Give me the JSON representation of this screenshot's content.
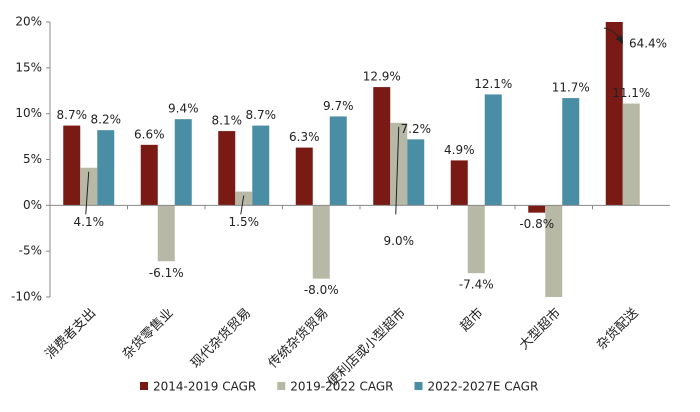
{
  "chart_data": {
    "type": "bar",
    "categories": [
      "消费者支出",
      "杂货零售业",
      "现代杂货贸易",
      "传统杂货贸易",
      "便利店或小型超市",
      "超市",
      "大型超市",
      "杂货配送"
    ],
    "series": [
      {
        "name": "2014-2019 CAGR",
        "color": "#7a1a14",
        "values": [
          8.7,
          6.6,
          8.1,
          6.3,
          12.9,
          4.9,
          -0.8,
          64.4
        ],
        "value_labels": [
          "8.7%",
          "6.6%",
          "8.1%",
          "6.3%",
          "12.9%",
          "4.9%",
          "-0.8%",
          "64.4%"
        ]
      },
      {
        "name": "2019-2022 CAGR",
        "color": "#b8b8a6",
        "values": [
          4.1,
          -6.1,
          1.5,
          -8.0,
          9.0,
          -7.4,
          -10,
          11.1
        ],
        "value_labels": [
          "4.1%",
          "-6.1%",
          "1.5%",
          "-8.0%",
          "9.0%",
          "-7.4%",
          null,
          "11.1%"
        ]
      },
      {
        "name": "2022-2027E CAGR",
        "color": "#4a8ea6",
        "values": [
          8.2,
          9.4,
          8.7,
          9.7,
          7.2,
          12.1,
          11.7,
          null
        ],
        "value_labels": [
          "8.2%",
          "9.4%",
          "8.7%",
          "9.7%",
          "7.2%",
          "12.1%",
          "11.7%",
          null
        ]
      }
    ],
    "ylim": [
      -10,
      20
    ],
    "yticks": [
      {
        "value": -10,
        "label": "-10%"
      },
      {
        "value": -5,
        "label": "-5%"
      },
      {
        "value": 0,
        "label": "0%"
      },
      {
        "value": 5,
        "label": "5%"
      },
      {
        "value": 10,
        "label": "10%"
      },
      {
        "value": 15,
        "label": "15%"
      },
      {
        "value": 20,
        "label": "20%"
      }
    ],
    "legend": "bottom"
  }
}
